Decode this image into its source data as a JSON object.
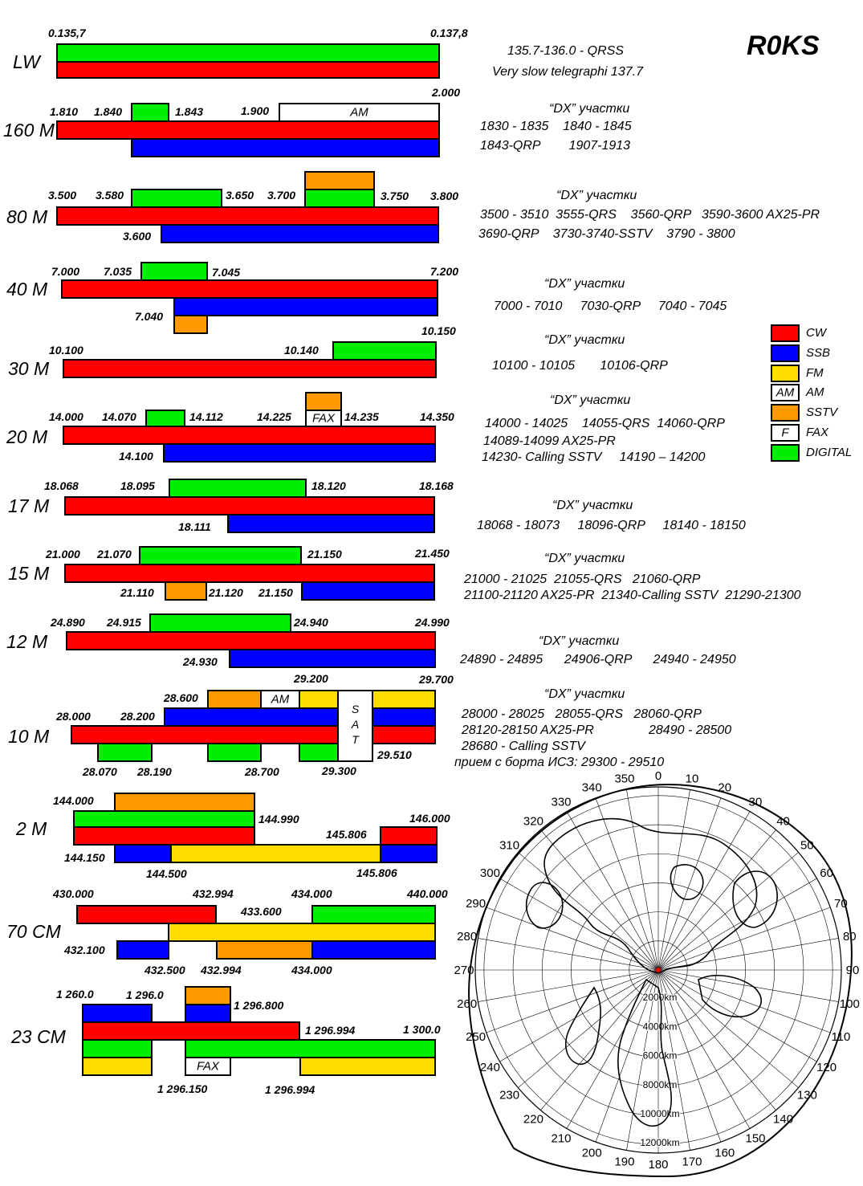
{
  "title": "R0KS",
  "colors": {
    "cw": "#ff0000",
    "ssb": "#0000ff",
    "fm": "#ffdd00",
    "sstv": "#ff9900",
    "digital": "#00ee00",
    "am": "#ffffff",
    "fax": "#ffffff"
  },
  "legend": [
    {
      "color_key": "cw",
      "label": "CW"
    },
    {
      "color_key": "ssb",
      "label": "SSB"
    },
    {
      "color_key": "fm",
      "label": "FM"
    },
    {
      "color_key": "am",
      "label": "AM",
      "box_text": "AM"
    },
    {
      "color_key": "sstv",
      "label": "SSTV"
    },
    {
      "color_key": "fax",
      "label": "FAX",
      "box_text": "F"
    },
    {
      "color_key": "digital",
      "label": "DIGITAL"
    }
  ],
  "bands": [
    {
      "name": "LW",
      "bars": [
        {
          "c": "digital"
        },
        {
          "c": "cw"
        }
      ],
      "freqs": [
        "0.135,7",
        "0.137,8"
      ],
      "notes": [
        "135.7-136.0 - QRSS",
        "Very slow telegraphi 137.7"
      ]
    },
    {
      "name": "160 M",
      "bars": [
        {
          "c": "digital"
        },
        {
          "c": "am",
          "text": "AM"
        },
        {
          "c": "cw"
        },
        {
          "c": "ssb"
        }
      ],
      "freqs": [
        "1.810",
        "1.840",
        "1.843",
        "1.900",
        "2.000"
      ],
      "dx_header": "“DX” участки",
      "notes": [
        "1830 - 1835    1840 - 1845",
        "1843-QRP        1907-1913"
      ]
    },
    {
      "name": "80 M",
      "bars": [
        {
          "c": "sstv"
        },
        {
          "c": "digital"
        },
        {
          "c": "digital"
        },
        {
          "c": "cw"
        },
        {
          "c": "ssb"
        }
      ],
      "freqs": [
        "3.500",
        "3.580",
        "3.650",
        "3.700",
        "3.750",
        "3.800",
        "3.600"
      ],
      "dx_header": "“DX” участки",
      "notes": [
        "3500 - 3510  3555-QRS    3560-QRP   3590-3600 AX25-PR",
        "3690-QRP    3730-3740-SSTV    3790 - 3800"
      ]
    },
    {
      "name": "40 M",
      "bars": [
        {
          "c": "digital"
        },
        {
          "c": "cw"
        },
        {
          "c": "ssb"
        },
        {
          "c": "sstv"
        }
      ],
      "freqs": [
        "7.000",
        "7.035",
        "7.045",
        "7.200",
        "7.040"
      ],
      "dx_header": "“DX” участки",
      "notes": [
        "7000 - 7010     7030-QRP     7040 - 7045"
      ]
    },
    {
      "name": "30 M",
      "bars": [
        {
          "c": "digital"
        },
        {
          "c": "cw"
        }
      ],
      "freqs": [
        "10.150",
        "10.100",
        "10.140"
      ],
      "dx_header": "“DX” участки",
      "notes": [
        "10100 - 10105       10106-QRP"
      ]
    },
    {
      "name": "20 M",
      "bars": [
        {
          "c": "sstv"
        },
        {
          "c": "digital"
        },
        {
          "c": "fax",
          "text": "FAX"
        },
        {
          "c": "cw"
        },
        {
          "c": "ssb"
        }
      ],
      "freqs": [
        "14.000",
        "14.070",
        "14.112",
        "14.225",
        "14.235",
        "14.350",
        "14.100"
      ],
      "dx_header": "“DX” участки",
      "notes": [
        "14000 - 14025    14055-QRS  14060-QRP",
        "14089-14099 AX25-PR",
        "14230- Calling SSTV     14190 – 14200"
      ]
    },
    {
      "name": "17 M",
      "bars": [
        {
          "c": "digital"
        },
        {
          "c": "cw"
        },
        {
          "c": "ssb"
        }
      ],
      "freqs": [
        "18.068",
        "18.095",
        "18.120",
        "18.168",
        "18.111"
      ],
      "dx_header": "“DX” участки",
      "notes": [
        "18068 - 18073     18096-QRP     18140 - 18150"
      ]
    },
    {
      "name": "15 M",
      "bars": [
        {
          "c": "digital"
        },
        {
          "c": "cw"
        },
        {
          "c": "sstv"
        },
        {
          "c": "ssb"
        }
      ],
      "freqs": [
        "21.000",
        "21.070",
        "21.150",
        "21.450",
        "21.110",
        "21.120",
        "21.150"
      ],
      "dx_header": "“DX” участки",
      "notes": [
        "21000 - 21025  21055-QRS   21060-QRP",
        "21100-21120 AX25-PR  21340-Calling SSTV  21290-21300"
      ]
    },
    {
      "name": "12 M",
      "bars": [
        {
          "c": "digital"
        },
        {
          "c": "cw"
        },
        {
          "c": "ssb"
        }
      ],
      "freqs": [
        "24.890",
        "24.915",
        "24.940",
        "24.990",
        "24.930"
      ],
      "dx_header": "“DX” участки",
      "notes": [
        "24890 - 24895      24906-QRP      24940 - 24950"
      ]
    },
    {
      "name": "10 M",
      "bars": [
        {
          "c": "sstv"
        },
        {
          "c": "am",
          "text": "AM"
        },
        {
          "c": "fm"
        },
        {
          "c": "fm"
        },
        {
          "c": "ssb"
        },
        {
          "c": "ssb"
        },
        {
          "c": "cw"
        },
        {
          "c": "cw"
        },
        {
          "c": "digital"
        },
        {
          "c": "digital"
        },
        {
          "c": "digital"
        }
      ],
      "sat_letters": [
        "S",
        "A",
        "T"
      ],
      "freqs": [
        "29.200",
        "29.700",
        "28.600",
        "28.000",
        "28.200",
        "29.510",
        "28.070",
        "28.190",
        "28.700",
        "29.300"
      ],
      "dx_header": "“DX” участки",
      "notes": [
        "28000 - 28025   28055-QRS   28060-QRP",
        "28120-28150 AX25-PR",
        "28680 - Calling SSTV",
        "прием с борта ИСЗ: 29300 - 29510"
      ],
      "notes_right": [
        "28490 - 28500"
      ]
    },
    {
      "name": "2 M",
      "bars": [
        {
          "c": "sstv"
        },
        {
          "c": "digital"
        },
        {
          "c": "cw"
        },
        {
          "c": "cw"
        },
        {
          "c": "ssb"
        },
        {
          "c": "fm"
        },
        {
          "c": "ssb"
        }
      ],
      "freqs": [
        "144.000",
        "144.990",
        "145.806",
        "146.000",
        "144.150",
        "144.500",
        "145.806"
      ]
    },
    {
      "name": "70 CM",
      "bars": [
        {
          "c": "cw"
        },
        {
          "c": "digital"
        },
        {
          "c": "fm"
        },
        {
          "c": "ssb"
        },
        {
          "c": "sstv"
        },
        {
          "c": "ssb"
        }
      ],
      "freqs": [
        "430.000",
        "432.994",
        "434.000",
        "440.000",
        "433.600",
        "432.100",
        "432.500",
        "432.994",
        "434.000"
      ]
    },
    {
      "name": "23 CM",
      "bars": [
        {
          "c": "ssb"
        },
        {
          "c": "sstv"
        },
        {
          "c": "ssb"
        },
        {
          "c": "cw"
        },
        {
          "c": "digital"
        },
        {
          "c": "digital"
        },
        {
          "c": "fm"
        },
        {
          "c": "fax",
          "text": "FAX"
        },
        {
          "c": "fm"
        }
      ],
      "freqs": [
        "1 260.0",
        "1 296.0",
        "1 296.800",
        "1 296.994",
        "1 300.0",
        "1 296.150",
        "1 296.994"
      ]
    }
  ],
  "map": {
    "bearings": [
      "0",
      "10",
      "20",
      "30",
      "40",
      "50",
      "60",
      "70",
      "80",
      "90",
      "100",
      "110",
      "120",
      "130",
      "140",
      "150",
      "160",
      "170",
      "180",
      "190",
      "200",
      "210",
      "220",
      "230",
      "240",
      "250",
      "260",
      "270",
      "280",
      "290",
      "300",
      "310",
      "320",
      "330",
      "340",
      "350"
    ],
    "ranges": [
      "2000km",
      "4000km",
      "6000km",
      "8000km",
      "10000km",
      "12000km"
    ]
  }
}
